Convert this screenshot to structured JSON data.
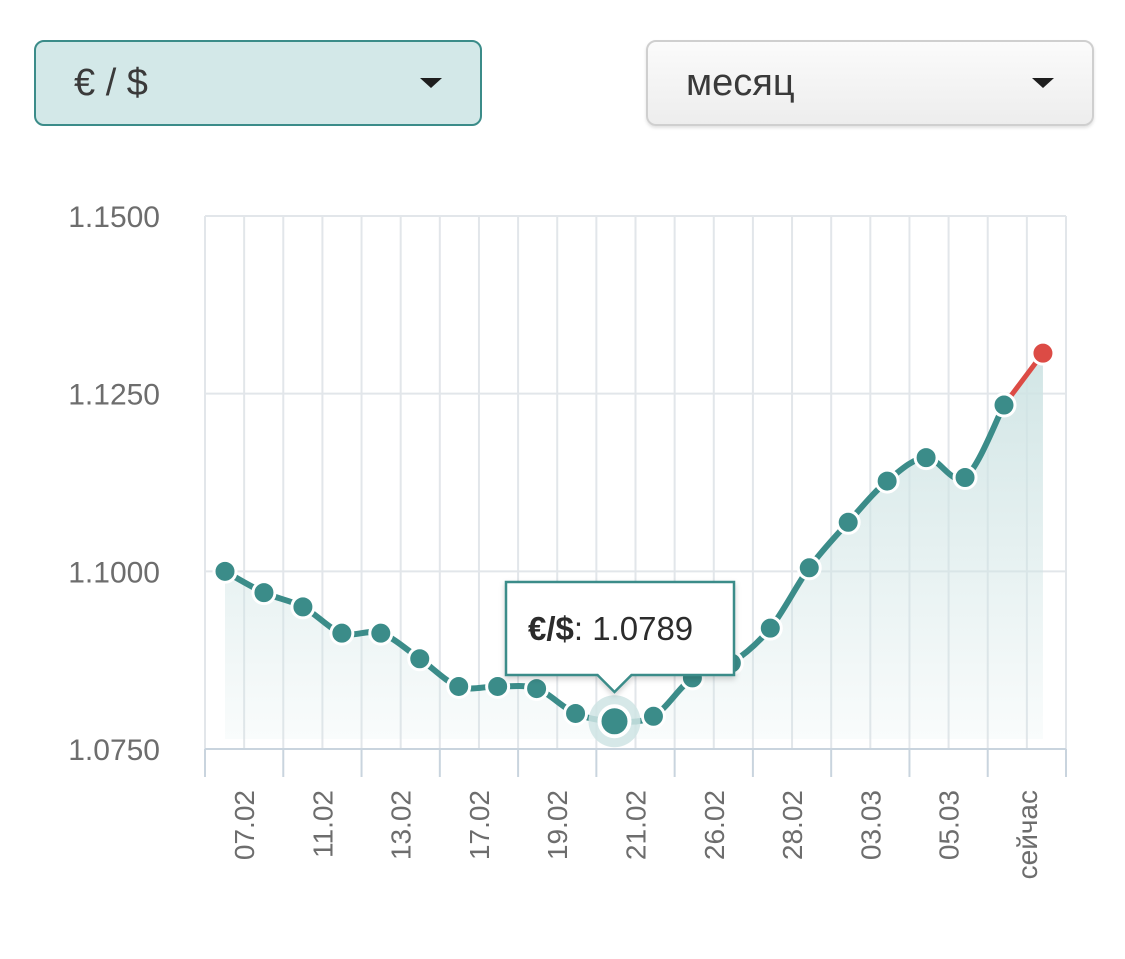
{
  "controls": {
    "currency_select": {
      "value": "€ / $"
    },
    "period_select": {
      "value": "месяц"
    }
  },
  "colors": {
    "line": "#3b8c89",
    "latest_point": "#dc4b45",
    "grid": "#e2e6ea",
    "fill": "#d3e8e8"
  },
  "tooltip": {
    "pair": "€/$",
    "value": "1.0789"
  },
  "chart_data": {
    "type": "line",
    "ylim": [
      1.075,
      1.15
    ],
    "yticks": [
      "1.1500",
      "1.1250",
      "1.1000",
      "1.0750"
    ],
    "xtick_labels": [
      "07.02",
      "11.02",
      "13.02",
      "17.02",
      "19.02",
      "21.02",
      "26.02",
      "28.02",
      "03.03",
      "05.03",
      "сейчас"
    ],
    "grid": true,
    "series": [
      {
        "values": [
          1.1,
          1.097,
          1.095,
          1.0913,
          1.0913,
          1.0877,
          1.0838,
          1.0838,
          1.0835,
          1.08,
          1.0789,
          1.0796,
          1.085,
          1.0871,
          1.092,
          1.1005,
          1.1069,
          1.1127,
          1.116,
          1.1132,
          1.1234,
          1.1307
        ],
        "highlighted_index": 10,
        "latest_index": 21
      }
    ]
  }
}
